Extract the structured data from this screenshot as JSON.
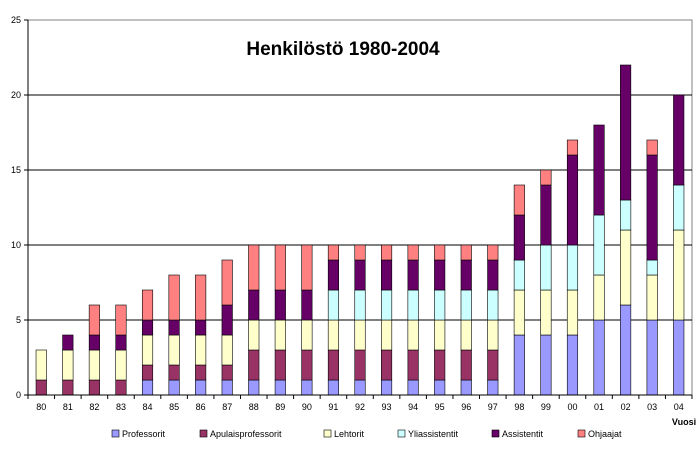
{
  "chart_data": {
    "type": "bar",
    "stacked": true,
    "title": "Henkilöstö 1980-2004",
    "xlabel": "Vuosi",
    "ylabel": "",
    "ylim": [
      0,
      25
    ],
    "yticks": [
      0,
      5,
      10,
      15,
      20,
      25
    ],
    "grid": true,
    "legend_position": "bottom",
    "categories": [
      "80",
      "81",
      "82",
      "83",
      "84",
      "85",
      "86",
      "87",
      "88",
      "89",
      "90",
      "91",
      "92",
      "93",
      "94",
      "95",
      "96",
      "97",
      "98",
      "99",
      "00",
      "01",
      "02",
      "03",
      "04"
    ],
    "series": [
      {
        "name": "Professorit",
        "color": "#9999ff",
        "values": [
          0,
          0,
          0,
          0,
          1,
          1,
          1,
          1,
          1,
          1,
          1,
          1,
          1,
          1,
          1,
          1,
          1,
          1,
          4,
          4,
          4,
          5,
          6,
          5,
          5
        ]
      },
      {
        "name": "Apulaisprofessorit",
        "color": "#993366",
        "values": [
          1,
          1,
          1,
          1,
          1,
          1,
          1,
          1,
          2,
          2,
          2,
          2,
          2,
          2,
          2,
          2,
          2,
          2,
          0,
          0,
          0,
          0,
          0,
          0,
          0
        ]
      },
      {
        "name": "Lehtorit",
        "color": "#ffffcc",
        "values": [
          2,
          2,
          2,
          2,
          2,
          2,
          2,
          2,
          2,
          2,
          2,
          2,
          2,
          2,
          2,
          2,
          2,
          2,
          3,
          3,
          3,
          3,
          5,
          3,
          6
        ]
      },
      {
        "name": "Yliassistentit",
        "color": "#ccffff",
        "values": [
          0,
          0,
          0,
          0,
          0,
          0,
          0,
          0,
          0,
          0,
          0,
          2,
          2,
          2,
          2,
          2,
          2,
          2,
          2,
          3,
          3,
          4,
          2,
          1,
          3
        ]
      },
      {
        "name": "Assistentit",
        "color": "#660066",
        "values": [
          0,
          1,
          1,
          1,
          1,
          1,
          1,
          2,
          2,
          2,
          2,
          2,
          2,
          2,
          2,
          2,
          2,
          2,
          3,
          4,
          6,
          6,
          9,
          7,
          6
        ]
      },
      {
        "name": "Ohjaajat",
        "color": "#ff8080",
        "values": [
          0,
          0,
          2,
          2,
          2,
          3,
          3,
          3,
          3,
          3,
          3,
          1,
          1,
          1,
          1,
          1,
          1,
          1,
          2,
          1,
          1,
          0,
          0,
          1,
          0
        ]
      }
    ]
  }
}
